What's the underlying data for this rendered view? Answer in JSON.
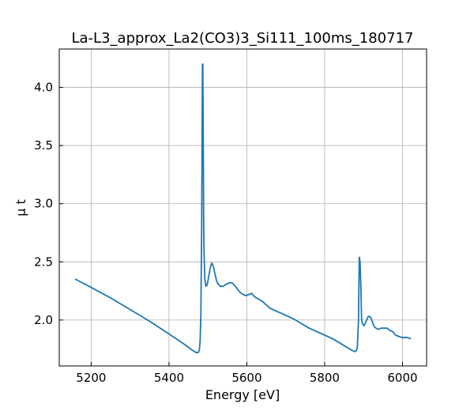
{
  "chart_data": {
    "type": "line",
    "title": "La-L3_approx_La2(CO3)3_Si111_100ms_180717",
    "xlabel": "Energy [eV]",
    "ylabel": "μ t",
    "xlim": [
      5118,
      6062
    ],
    "ylim": [
      1.605,
      4.33
    ],
    "xticks": [
      5200,
      5400,
      5600,
      5800,
      6000
    ],
    "yticks": [
      2.0,
      2.5,
      3.0,
      3.5,
      4.0
    ],
    "xtick_labels": [
      "5200",
      "5400",
      "5600",
      "5800",
      "6000"
    ],
    "ytick_labels": [
      "2.0",
      "2.5",
      "3.0",
      "3.5",
      "4.0"
    ],
    "grid": true,
    "line_color": "#1f77b4",
    "series": [
      {
        "x": [
          5160,
          5200,
          5250,
          5300,
          5350,
          5400,
          5440,
          5460,
          5470,
          5475,
          5478,
          5480,
          5482,
          5484,
          5485,
          5486,
          5487,
          5488,
          5489,
          5490,
          5492,
          5495,
          5498,
          5502,
          5506,
          5510,
          5514,
          5518,
          5522,
          5526,
          5532,
          5540,
          5548,
          5556,
          5562,
          5568,
          5575,
          5582,
          5590,
          5598,
          5606,
          5612,
          5620,
          5630,
          5640,
          5650,
          5660,
          5680,
          5700,
          5720,
          5740,
          5760,
          5780,
          5800,
          5820,
          5840,
          5860,
          5870,
          5876,
          5880,
          5884,
          5887,
          5889,
          5891,
          5893,
          5895,
          5897,
          5899,
          5901,
          5904,
          5908,
          5912,
          5916,
          5920,
          5924,
          5928,
          5932,
          5938,
          5945,
          5952,
          5960,
          5968,
          5975,
          5982,
          5990,
          5998,
          6005,
          6012,
          6020
        ],
        "y": [
          2.35,
          2.28,
          2.19,
          2.09,
          1.99,
          1.88,
          1.79,
          1.74,
          1.72,
          1.72,
          1.74,
          1.82,
          2.05,
          2.8,
          3.5,
          4.2,
          4.2,
          3.6,
          2.9,
          2.6,
          2.35,
          2.29,
          2.3,
          2.37,
          2.45,
          2.49,
          2.46,
          2.4,
          2.34,
          2.31,
          2.29,
          2.29,
          2.31,
          2.32,
          2.32,
          2.3,
          2.27,
          2.24,
          2.22,
          2.21,
          2.22,
          2.23,
          2.2,
          2.18,
          2.16,
          2.13,
          2.1,
          2.07,
          2.04,
          2.01,
          1.97,
          1.93,
          1.9,
          1.87,
          1.84,
          1.8,
          1.76,
          1.74,
          1.73,
          1.73,
          1.76,
          2.0,
          2.54,
          2.5,
          2.3,
          2.0,
          1.97,
          1.96,
          1.95,
          1.97,
          2.0,
          2.03,
          2.03,
          2.01,
          1.97,
          1.94,
          1.93,
          1.92,
          1.93,
          1.93,
          1.93,
          1.91,
          1.9,
          1.87,
          1.86,
          1.85,
          1.85,
          1.85,
          1.84
        ]
      }
    ]
  }
}
